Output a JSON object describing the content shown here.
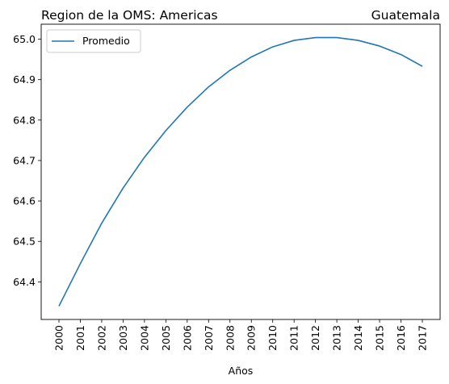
{
  "chart_data": {
    "type": "line",
    "title_left": "Region de la OMS: Americas",
    "title_right": "Guatemala",
    "xlabel": "Años",
    "ylabel": "",
    "x": [
      "2000",
      "2001",
      "2002",
      "2003",
      "2004",
      "2005",
      "2006",
      "2007",
      "2008",
      "2009",
      "2010",
      "2011",
      "2012",
      "2013",
      "2014",
      "2015",
      "2016",
      "2017"
    ],
    "series": [
      {
        "name": "Promedio",
        "color": "#1f77b4",
        "values": [
          64.34,
          64.445,
          64.545,
          64.632,
          64.708,
          64.774,
          64.832,
          64.882,
          64.923,
          64.956,
          64.981,
          64.997,
          65.004,
          65.004,
          64.997,
          64.983,
          64.962,
          64.933
        ]
      }
    ],
    "yticks": [
      "64.4",
      "64.5",
      "64.6",
      "64.7",
      "64.8",
      "64.9",
      "65.0"
    ],
    "ylim": [
      64.307,
      65.037
    ],
    "grid": false,
    "legend_position": "upper-left"
  }
}
